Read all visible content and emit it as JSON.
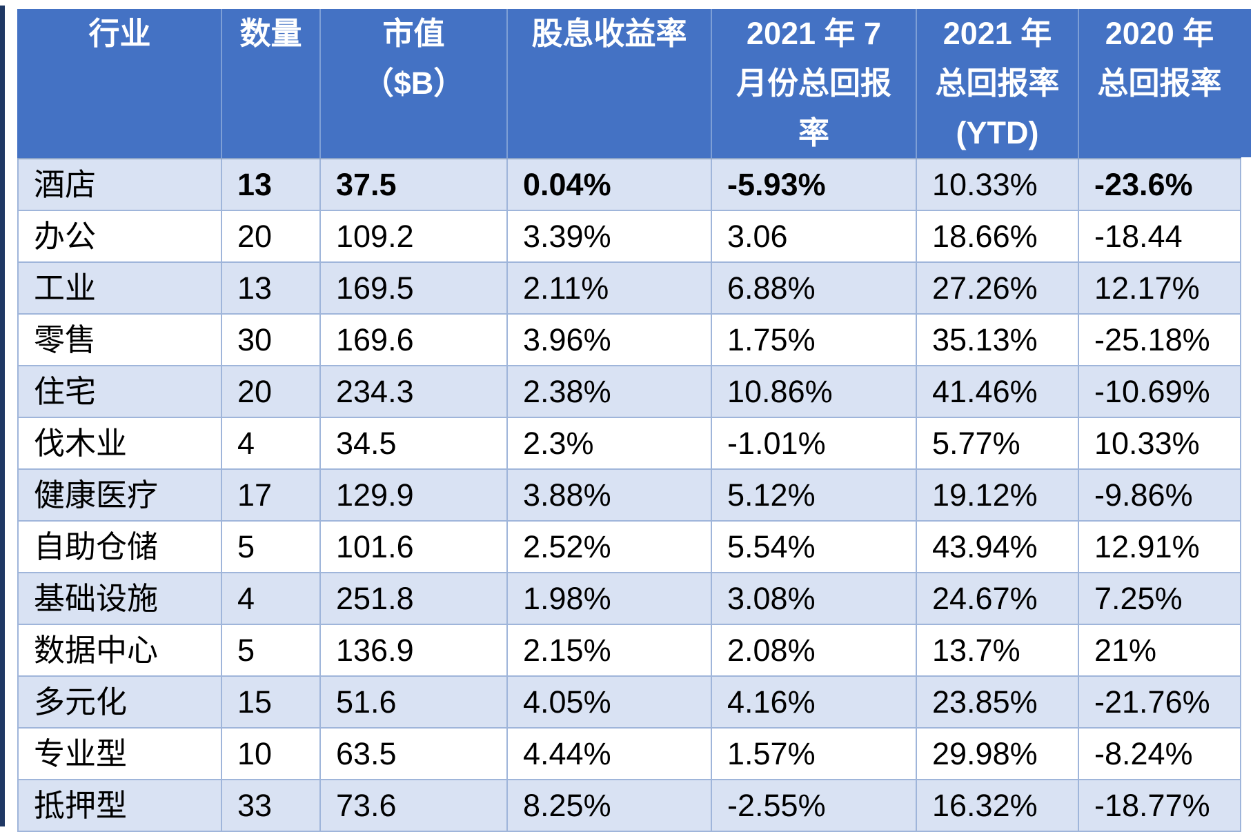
{
  "colors": {
    "header_bg": "#4472C4",
    "header_text": "#FFFFFF",
    "stripe_row_bg": "#D9E2F3",
    "plain_row_bg": "#FFFFFF",
    "grid_border": "#9FB5DA",
    "body_text": "#000000",
    "left_edge_bar": "#1F3864"
  },
  "table": {
    "header_lines": [
      [
        "行业"
      ],
      [
        "数量"
      ],
      [
        "市值",
        "（$B）"
      ],
      [
        "股息收益率"
      ],
      [
        "2021 年 7",
        "月份总回报",
        "率"
      ],
      [
        "2021 年",
        "总回报率",
        "(YTD)"
      ],
      [
        "2020 年",
        "总回报率"
      ]
    ],
    "column_ids": [
      "industry",
      "count",
      "market_cap_billions",
      "dividend_yield",
      "july_2021_total_return",
      "ytd_2021_total_return",
      "total_return_2020"
    ],
    "rows": [
      {
        "cells": [
          "酒店",
          "13",
          "37.5",
          "0.04%",
          "-5.93%",
          "10.33%",
          "-23.6%"
        ],
        "bold_mask": [
          false,
          true,
          true,
          true,
          true,
          false,
          true
        ]
      },
      {
        "cells": [
          "办公",
          "20",
          "109.2",
          "3.39%",
          "3.06",
          "18.66%",
          "-18.44"
        ],
        "bold_mask": null
      },
      {
        "cells": [
          "工业",
          "13",
          "169.5",
          "2.11%",
          "6.88%",
          "27.26%",
          "12.17%"
        ],
        "bold_mask": null
      },
      {
        "cells": [
          "零售",
          "30",
          "169.6",
          "3.96%",
          "1.75%",
          "35.13%",
          "-25.18%"
        ],
        "bold_mask": null
      },
      {
        "cells": [
          "住宅",
          "20",
          "234.3",
          "2.38%",
          "10.86%",
          "41.46%",
          "-10.69%"
        ],
        "bold_mask": null
      },
      {
        "cells": [
          "伐木业",
          "4",
          "34.5",
          "2.3%",
          "-1.01%",
          "5.77%",
          "10.33%"
        ],
        "bold_mask": null
      },
      {
        "cells": [
          "健康医疗",
          "17",
          "129.9",
          "3.88%",
          "5.12%",
          "19.12%",
          "-9.86%"
        ],
        "bold_mask": null
      },
      {
        "cells": [
          "自助仓储",
          "5",
          "101.6",
          "2.52%",
          "5.54%",
          "43.94%",
          "12.91%"
        ],
        "bold_mask": null
      },
      {
        "cells": [
          "基础设施",
          "4",
          "251.8",
          "1.98%",
          "3.08%",
          "24.67%",
          "7.25%"
        ],
        "bold_mask": null
      },
      {
        "cells": [
          "数据中心",
          "5",
          "136.9",
          "2.15%",
          "2.08%",
          "13.7%",
          "21%"
        ],
        "bold_mask": null
      },
      {
        "cells": [
          "多元化",
          "15",
          "51.6",
          "4.05%",
          "4.16%",
          "23.85%",
          "-21.76%"
        ],
        "bold_mask": null
      },
      {
        "cells": [
          "专业型",
          "10",
          "63.5",
          "4.44%",
          "1.57%",
          "29.98%",
          "-8.24%"
        ],
        "bold_mask": null
      },
      {
        "cells": [
          "抵押型",
          "33",
          "73.6",
          "8.25%",
          "-2.55%",
          "16.32%",
          "-18.77%"
        ],
        "bold_mask": null
      }
    ]
  }
}
